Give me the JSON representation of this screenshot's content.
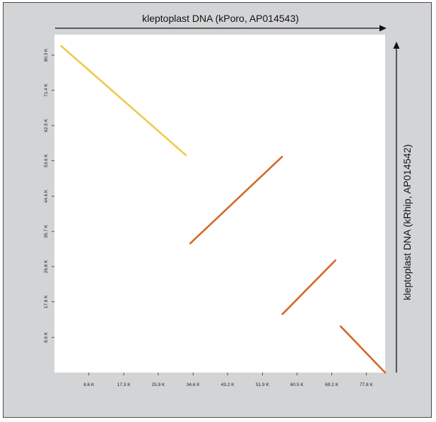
{
  "chart_data": {
    "type": "line",
    "title": "",
    "xlabel": "kleptoplast DNA (kPoro, AP014543)",
    "ylabel": "kleptoplast DNA (kRhip, AP014542)",
    "xlim": [
      0,
      82500
    ],
    "ylim": [
      0,
      85500
    ],
    "x_ticks": [
      {
        "value": 8600,
        "label": "8.6 K"
      },
      {
        "value": 17300,
        "label": "17.3 K"
      },
      {
        "value": 25900,
        "label": "25.9 K"
      },
      {
        "value": 34600,
        "label": "34.6 K"
      },
      {
        "value": 43200,
        "label": "43.2 K"
      },
      {
        "value": 51900,
        "label": "51.9 K"
      },
      {
        "value": 60500,
        "label": "60.5 K"
      },
      {
        "value": 69200,
        "label": "69.2 K"
      },
      {
        "value": 77800,
        "label": "77.8 K"
      }
    ],
    "y_ticks": [
      {
        "value": 8900,
        "label": "8.9 K"
      },
      {
        "value": 17900,
        "label": "17.9 K"
      },
      {
        "value": 26800,
        "label": "26.8 K"
      },
      {
        "value": 35700,
        "label": "35.7 K"
      },
      {
        "value": 44600,
        "label": "44.6 K"
      },
      {
        "value": 53600,
        "label": "53.6 K"
      },
      {
        "value": 62500,
        "label": "62.5 K"
      },
      {
        "value": 71400,
        "label": "71.4 K"
      },
      {
        "value": 80300,
        "label": "80.3 K"
      }
    ],
    "grid": false,
    "legend": "none",
    "segments": [
      {
        "x": [
          1700,
          32800
        ],
        "y": [
          82600,
          55000
        ],
        "color": "#f0c94a",
        "orientation": "inverted"
      },
      {
        "x": [
          33900,
          56800
        ],
        "y": [
          32700,
          54600
        ],
        "color": "#d4682a",
        "orientation": "forward"
      },
      {
        "x": [
          56900,
          70100
        ],
        "y": [
          14800,
          28400
        ],
        "color": "#d4682a",
        "orientation": "forward"
      },
      {
        "x": [
          71400,
          82500
        ],
        "y": [
          11700,
          0
        ],
        "color": "#d4682a",
        "orientation": "inverted"
      }
    ]
  }
}
